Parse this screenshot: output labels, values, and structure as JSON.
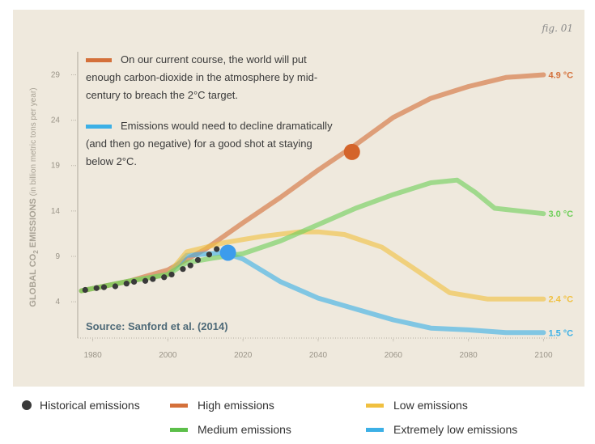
{
  "fig_label": "fig. 01",
  "chart_data": {
    "type": "line",
    "ylabel": "GLOBAL CO",
    "ylabel_sub": "2",
    "ylabel_rest": " EMISSIONS",
    "ylabel_units": "(in billion metric tons per year)",
    "xlim": [
      1976,
      2104
    ],
    "ylim": [
      0,
      31
    ],
    "x_ticks": [
      1980,
      2000,
      2020,
      2040,
      2060,
      2080,
      2100
    ],
    "y_ticks": [
      4,
      9,
      14,
      19,
      24,
      29
    ],
    "source": "Source: Sanford et al. (2014)",
    "annotations": [
      {
        "color": "#d4703a",
        "lines": [
          "On our current course, the world will put",
          "enough carbon-dioxide in the atmosphere by mid-",
          "century to breach the 2°C target."
        ]
      },
      {
        "color": "#3cb0e6",
        "lines": [
          "Emissions would need to decline dramatically",
          "(and then go negative) for a good shot at staying",
          "below 2°C."
        ]
      }
    ],
    "series": [
      {
        "name": "High emissions",
        "color": "#d4703a",
        "end_label": "4.9 °C",
        "points": [
          [
            1977,
            5.2
          ],
          [
            1990,
            6.3
          ],
          [
            2000,
            7.5
          ],
          [
            2010,
            9.8
          ],
          [
            2020,
            12.7
          ],
          [
            2030,
            15.5
          ],
          [
            2040,
            18.5
          ],
          [
            2050,
            21.3
          ],
          [
            2060,
            24.3
          ],
          [
            2070,
            26.4
          ],
          [
            2080,
            27.7
          ],
          [
            2090,
            28.7
          ],
          [
            2100,
            29
          ]
        ]
      },
      {
        "name": "Medium emissions",
        "color": "#6fcf5a",
        "end_label": "3.0 °C",
        "points": [
          [
            1977,
            5.2
          ],
          [
            1990,
            6.3
          ],
          [
            2000,
            7.0
          ],
          [
            2005,
            8.3
          ],
          [
            2012,
            8.8
          ],
          [
            2020,
            9.3
          ],
          [
            2030,
            10.7
          ],
          [
            2040,
            12.5
          ],
          [
            2050,
            14.3
          ],
          [
            2060,
            15.8
          ],
          [
            2070,
            17.1
          ],
          [
            2077,
            17.4
          ],
          [
            2082,
            16.0
          ],
          [
            2087,
            14.3
          ],
          [
            2100,
            13.7
          ]
        ]
      },
      {
        "name": "Low emissions",
        "color": "#f0c040",
        "end_label": "2.4 °C",
        "points": [
          [
            1977,
            5.2
          ],
          [
            1990,
            6.3
          ],
          [
            2000,
            7.0
          ],
          [
            2005,
            9.5
          ],
          [
            2015,
            10.5
          ],
          [
            2025,
            11.2
          ],
          [
            2035,
            11.7
          ],
          [
            2040,
            11.7
          ],
          [
            2047,
            11.4
          ],
          [
            2057,
            10.0
          ],
          [
            2065,
            7.8
          ],
          [
            2075,
            5.0
          ],
          [
            2085,
            4.3
          ],
          [
            2100,
            4.3
          ]
        ]
      },
      {
        "name": "Extremely low emissions",
        "color": "#3cb0e6",
        "end_label": "1.5 °C",
        "points": [
          [
            1977,
            5.2
          ],
          [
            1990,
            6.3
          ],
          [
            2000,
            7.0
          ],
          [
            2005,
            9.1
          ],
          [
            2015,
            9.4
          ],
          [
            2020,
            8.7
          ],
          [
            2030,
            6.2
          ],
          [
            2040,
            4.4
          ],
          [
            2050,
            3.2
          ],
          [
            2060,
            2.0
          ],
          [
            2070,
            1.1
          ],
          [
            2080,
            0.9
          ],
          [
            2090,
            0.6
          ],
          [
            2100,
            0.6
          ]
        ]
      }
    ],
    "historical": {
      "name": "Historical emissions",
      "color": "#3a3a3a",
      "points": [
        [
          1978,
          5.3
        ],
        [
          1981,
          5.5
        ],
        [
          1983,
          5.6
        ],
        [
          1986,
          5.7
        ],
        [
          1989,
          6.0
        ],
        [
          1991,
          6.2
        ],
        [
          1994,
          6.3
        ],
        [
          1996,
          6.5
        ],
        [
          1999,
          6.7
        ],
        [
          2001,
          7.0
        ],
        [
          2004,
          7.6
        ],
        [
          2006,
          8.0
        ],
        [
          2008,
          8.6
        ],
        [
          2011,
          9.2
        ],
        [
          2013,
          9.8
        ]
      ]
    },
    "markers": [
      {
        "x": 2049,
        "y": 20.5,
        "color": "#d4642a"
      },
      {
        "x": 2016,
        "y": 9.4,
        "color": "#3c9cec"
      }
    ]
  },
  "legend": {
    "items": [
      {
        "label": "Historical emissions",
        "color": "#3a3a3a",
        "kind": "dot"
      },
      {
        "label": "High emissions",
        "color": "#d4703a",
        "kind": "bar"
      },
      {
        "label": "Low emissions",
        "color": "#f0c040",
        "kind": "bar"
      },
      {
        "label": "Medium emissions",
        "color": "#5cbf4a",
        "kind": "bar"
      },
      {
        "label": "Extremely low emissions",
        "color": "#3cb0e6",
        "kind": "bar"
      }
    ]
  }
}
